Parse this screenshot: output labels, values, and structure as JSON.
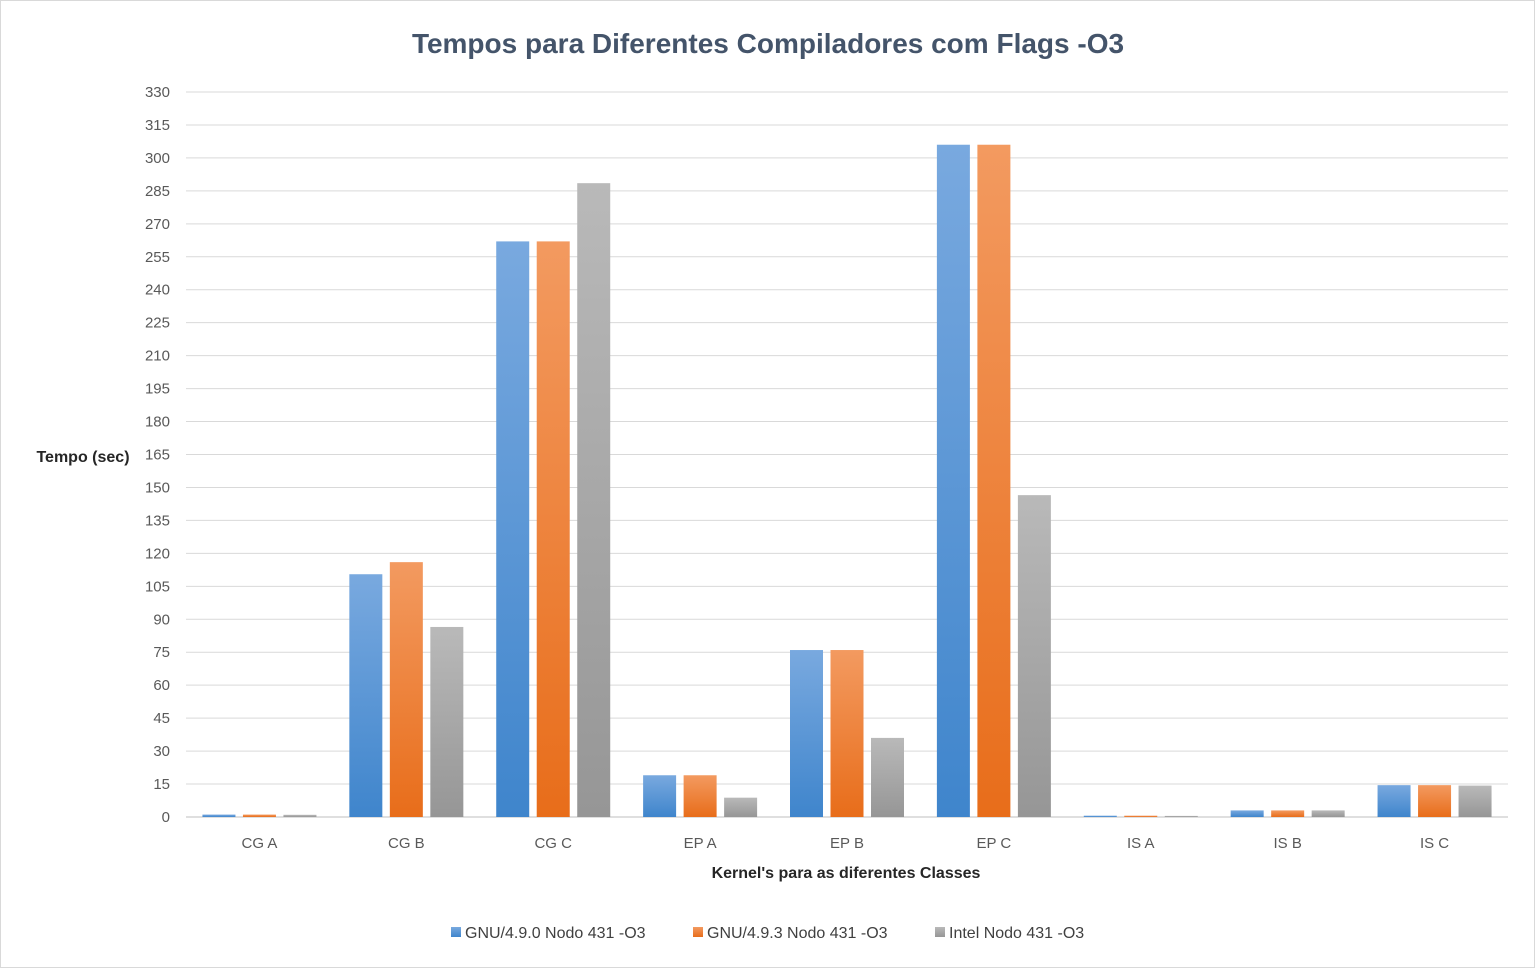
{
  "chart_data": {
    "type": "bar",
    "title": "Tempos para Diferentes Compiladores com Flags -O3",
    "xlabel": "Kernel's para as diferentes Classes",
    "ylabel": "Tempo (sec)",
    "ylim": [
      0,
      330
    ],
    "ytick_step": 15,
    "grid": true,
    "legend_position": "bottom",
    "categories": [
      "CG A",
      "CG B",
      "CG C",
      "EP A",
      "EP B",
      "EP C",
      "IS A",
      "IS B",
      "IS C"
    ],
    "series": [
      {
        "name": "GNU/4.9.0 Nodo 431 -O3",
        "color_top": "#79a9df",
        "color_bottom": "#3f85cc",
        "values": [
          1.1,
          110.5,
          262,
          19,
          76,
          306,
          0.6,
          3,
          14.5
        ]
      },
      {
        "name": "GNU/4.9.3 Nodo 431 -O3",
        "color_top": "#f39a60",
        "color_bottom": "#e86d1a",
        "values": [
          1.1,
          116,
          262,
          19,
          76,
          306,
          0.6,
          3,
          14.5
        ]
      },
      {
        "name": "Intel Nodo 431 -O3",
        "color_top": "#b9b9b9",
        "color_bottom": "#969696",
        "values": [
          1,
          86.5,
          288.5,
          8.8,
          36,
          146.5,
          0.5,
          3,
          14.3
        ]
      }
    ]
  }
}
